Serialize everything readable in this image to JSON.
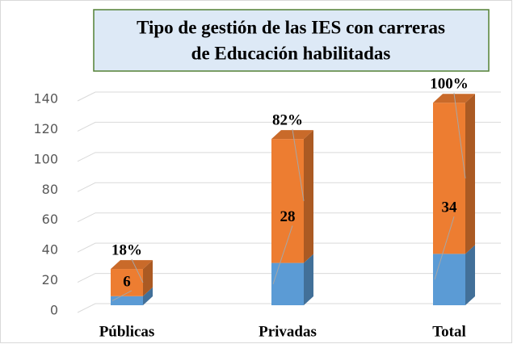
{
  "chart_data": {
    "type": "bar3d_stacked",
    "title": [
      "Tipo de gestión de las IES con carreras",
      "de Educación habilitadas"
    ],
    "categories": [
      "Públicas",
      "Privadas",
      "Total"
    ],
    "series": [
      {
        "color": "#5b9bd5",
        "values": [
          6,
          28,
          34
        ]
      },
      {
        "color": "#ed7d31",
        "values": [
          18,
          82,
          100
        ],
        "value_labels": [
          "18%",
          "82%",
          "100%"
        ]
      }
    ],
    "ylim": [
      0,
      140
    ],
    "yticks": [
      0,
      20,
      40,
      60,
      80,
      100,
      120,
      140
    ],
    "grid": true
  }
}
